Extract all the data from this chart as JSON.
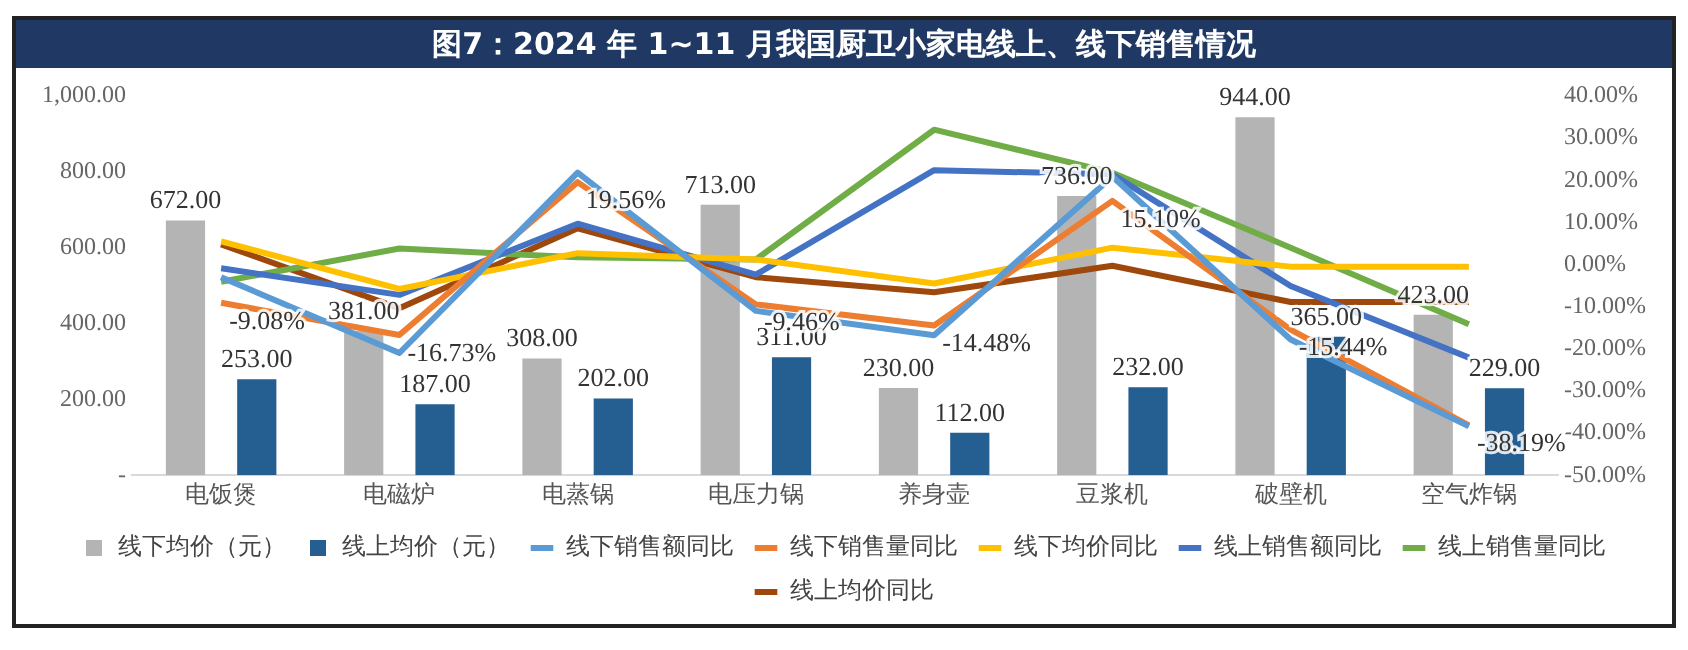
{
  "chart_data": {
    "type": "bar",
    "title": "图7：2024 年 1~11 月我国厨卫小家电线上、线下销售情况",
    "categories": [
      "电饭煲",
      "电磁炉",
      "电蒸锅",
      "电压力锅",
      "养身壶",
      "豆浆机",
      "破壁机",
      "空气炸锅"
    ],
    "ylim": [
      0,
      1000
    ],
    "yticks": [
      {
        "value": 0,
        "label": "-"
      },
      {
        "value": 200,
        "label": "200.00"
      },
      {
        "value": 400,
        "label": "400.00"
      },
      {
        "value": 600,
        "label": "600.00"
      },
      {
        "value": 800,
        "label": "800.00"
      },
      {
        "value": 1000,
        "label": "1,000.00"
      }
    ],
    "y2lim": [
      -50,
      40
    ],
    "y2ticks": [
      {
        "value": -50,
        "label": "-50.00%"
      },
      {
        "value": -40,
        "label": "-40.00%"
      },
      {
        "value": -30,
        "label": "-30.00%"
      },
      {
        "value": -20,
        "label": "-20.00%"
      },
      {
        "value": -10,
        "label": "-10.00%"
      },
      {
        "value": 0,
        "label": "0.00%"
      },
      {
        "value": 10,
        "label": "10.00%"
      },
      {
        "value": 20,
        "label": "20.00%"
      },
      {
        "value": 30,
        "label": "30.00%"
      },
      {
        "value": 40,
        "label": "40.00%"
      }
    ],
    "grid": false,
    "legend": "bottom",
    "series": [
      {
        "name": "线下均价（元）",
        "color": "#b4b4b4",
        "values": [
          672,
          381,
          308,
          713,
          230,
          736,
          944,
          423
        ],
        "value_labels": [
          "672.00",
          "381.00",
          "308.00",
          "713.00",
          "230.00",
          "736.00",
          "944.00",
          "423.00"
        ]
      },
      {
        "name": "线上均价（元）",
        "color": "#255e91",
        "values": [
          253,
          187,
          202,
          311,
          112,
          232,
          365,
          229
        ],
        "value_labels": [
          "253.00",
          "187.00",
          "202.00",
          "311.00",
          "112.00",
          "232.00",
          "365.00",
          "229.00"
        ]
      },
      {
        "name": "线下销售额同比",
        "type": "line",
        "axis": "y2",
        "color": "#5b9bd5",
        "values": [
          -3,
          -21,
          21.8,
          -11,
          -16.8,
          20.9,
          -17.8,
          -38.4
        ]
      },
      {
        "name": "线下销售量同比",
        "type": "line",
        "axis": "y2",
        "color": "#ed7d31",
        "values": [
          -9.08,
          -16.73,
          19.56,
          -9.46,
          -14.48,
          15.1,
          -15.44,
          -38.19
        ],
        "value_labels": [
          "-9.08%",
          "-16.73%",
          "19.56%",
          "-9.46%",
          "-14.48%",
          "15.10%",
          "-15.44%",
          "-38.19%"
        ]
      },
      {
        "name": "线下均价同比",
        "type": "line",
        "axis": "y2",
        "color": "#ffc000",
        "values": [
          5.5,
          -5.8,
          2.7,
          1.2,
          -4.5,
          4,
          -0.5,
          -0.5
        ]
      },
      {
        "name": "线上销售额同比",
        "type": "line",
        "axis": "y2",
        "color": "#4472c4",
        "values": [
          -0.9,
          -7.2,
          9.7,
          -2.4,
          22.4,
          21.4,
          -5.1,
          -22.1
        ]
      },
      {
        "name": "线上销售量同比",
        "type": "line",
        "axis": "y2",
        "color": "#70ad47",
        "values": [
          -4.1,
          3.8,
          1.7,
          1.2,
          32,
          21.8,
          4,
          -14.2
        ]
      },
      {
        "name": "线上均价同比",
        "type": "line",
        "axis": "y2",
        "color": "#9e480e",
        "values": [
          4.8,
          -10.4,
          8.6,
          -3,
          -6.6,
          -0.3,
          -8.9,
          -8.9
        ]
      }
    ]
  }
}
